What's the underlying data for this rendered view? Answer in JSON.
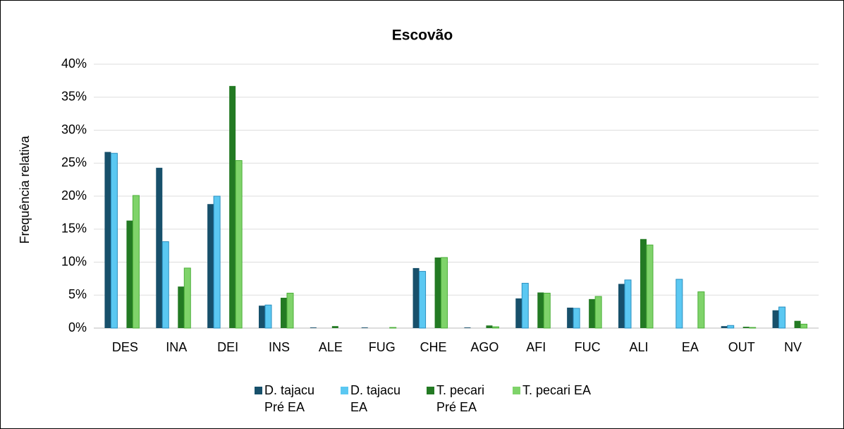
{
  "chart_data": {
    "type": "bar",
    "title": "Escovão",
    "ylabel": "Frequência relativa",
    "categories": [
      "DES",
      "INA",
      "DEI",
      "INS",
      "ALE",
      "FUG",
      "CHE",
      "AGO",
      "AFI",
      "FUC",
      "ALI",
      "EA",
      "OUT",
      "NV"
    ],
    "series": [
      {
        "name": "D. tajacu Pré EA",
        "color": "#17506b",
        "values": [
          26.7,
          24.3,
          18.8,
          3.4,
          0.1,
          0.1,
          9.1,
          0.1,
          4.5,
          3.1,
          6.7,
          0,
          0.3,
          2.7
        ]
      },
      {
        "name": "D. tajacu EA",
        "color": "#5bc8f2",
        "values": [
          26.5,
          13.1,
          20.0,
          3.5,
          0,
          0,
          8.6,
          0,
          6.8,
          3.0,
          7.3,
          7.4,
          0.4,
          3.2
        ]
      },
      {
        "name": "T. pecari Pré EA",
        "color": "#237a23",
        "values": [
          16.3,
          6.3,
          36.7,
          4.6,
          0.3,
          0,
          10.7,
          0.4,
          5.4,
          4.4,
          13.5,
          0,
          0.2,
          1.1
        ]
      },
      {
        "name": "T. pecari EA",
        "color": "#7fd36a",
        "values": [
          20.1,
          9.1,
          25.4,
          5.3,
          0,
          0.1,
          10.7,
          0.2,
          5.3,
          4.8,
          12.6,
          5.5,
          0.1,
          0.6
        ]
      }
    ],
    "ylim": [
      0,
      40
    ],
    "yticks": [
      {
        "value": 0,
        "label": "0%"
      },
      {
        "value": 5,
        "label": "5%"
      },
      {
        "value": 10,
        "label": "10%"
      },
      {
        "value": 15,
        "label": "15%"
      },
      {
        "value": 20,
        "label": "20%"
      },
      {
        "value": 25,
        "label": "25%"
      },
      {
        "value": 30,
        "label": "30%"
      },
      {
        "value": 35,
        "label": "35%"
      },
      {
        "value": 40,
        "label": "40%"
      }
    ],
    "grid": true
  }
}
